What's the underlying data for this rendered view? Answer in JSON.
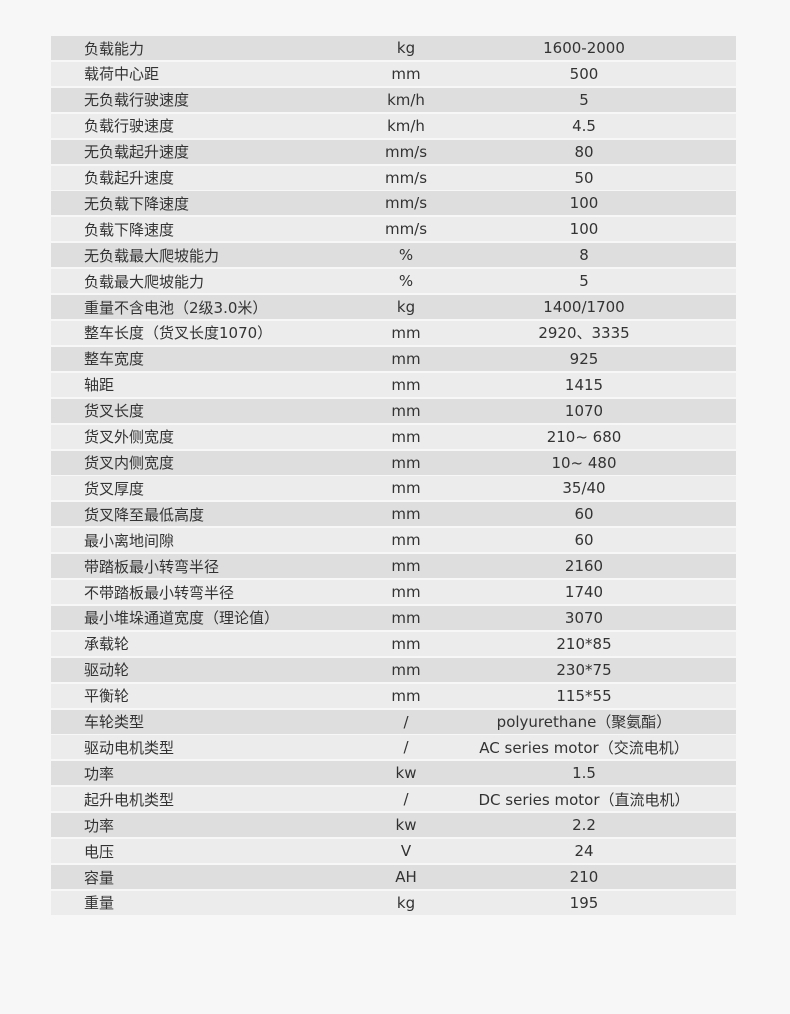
{
  "spec_table": {
    "rows": [
      {
        "name": "负载能力",
        "unit": "kg",
        "value": "1600-2000"
      },
      {
        "name": "载荷中心距",
        "unit": "mm",
        "value": "500"
      },
      {
        "name": "无负载行驶速度",
        "unit": "km/h",
        "value": "5"
      },
      {
        "name": "负载行驶速度",
        "unit": "km/h",
        "value": "4.5"
      },
      {
        "name": "无负载起升速度",
        "unit": "mm/s",
        "value": "80"
      },
      {
        "name": "负载起升速度",
        "unit": "mm/s",
        "value": "50"
      },
      {
        "name": "无负载下降速度",
        "unit": "mm/s",
        "value": "100"
      },
      {
        "name": "负载下降速度",
        "unit": "mm/s",
        "value": "100"
      },
      {
        "name": "无负载最大爬坡能力",
        "unit": "%",
        "value": "8"
      },
      {
        "name": "负载最大爬坡能力",
        "unit": "%",
        "value": "5"
      },
      {
        "name": "重量不含电池（2级3.0米）",
        "unit": "kg",
        "value": "1400/1700"
      },
      {
        "name": "整车长度（货叉长度1070）",
        "unit": "mm",
        "value": "2920、3335"
      },
      {
        "name": "整车宽度",
        "unit": "mm",
        "value": "925"
      },
      {
        "name": "轴距",
        "unit": "mm",
        "value": "1415"
      },
      {
        "name": "货叉长度",
        "unit": "mm",
        "value": "1070"
      },
      {
        "name": "货叉外侧宽度",
        "unit": "mm",
        "value": "210~ 680"
      },
      {
        "name": "货叉内侧宽度",
        "unit": "mm",
        "value": "10~ 480"
      },
      {
        "name": "货叉厚度",
        "unit": "mm",
        "value": "35/40"
      },
      {
        "name": "货叉降至最低高度",
        "unit": "mm",
        "value": "60"
      },
      {
        "name": "最小离地间隙",
        "unit": "mm",
        "value": "60"
      },
      {
        "name": "带踏板最小转弯半径",
        "unit": "mm",
        "value": "2160"
      },
      {
        "name": "不带踏板最小转弯半径",
        "unit": "mm",
        "value": "1740"
      },
      {
        "name": "最小堆垛通道宽度（理论值）",
        "unit": "mm",
        "value": "3070"
      },
      {
        "name": "承载轮",
        "unit": "mm",
        "value": "210*85"
      },
      {
        "name": "驱动轮",
        "unit": "mm",
        "value": "230*75"
      },
      {
        "name": "平衡轮",
        "unit": "mm",
        "value": "115*55"
      },
      {
        "name": "车轮类型",
        "unit": "/",
        "value": "polyurethane（聚氨酯）"
      },
      {
        "name": "驱动电机类型",
        "unit": "/",
        "value": "AC series motor（交流电机）"
      },
      {
        "name": "功率",
        "unit": "kw",
        "value": "1.5"
      },
      {
        "name": "起升电机类型",
        "unit": "/",
        "value": "DC series motor（直流电机）"
      },
      {
        "name": "功率",
        "unit": "kw",
        "value": "2.2"
      },
      {
        "name": "电压",
        "unit": "V",
        "value": "24"
      },
      {
        "name": "容量",
        "unit": "AH",
        "value": "210"
      },
      {
        "name": "重量",
        "unit": "kg",
        "value": "195"
      }
    ]
  }
}
